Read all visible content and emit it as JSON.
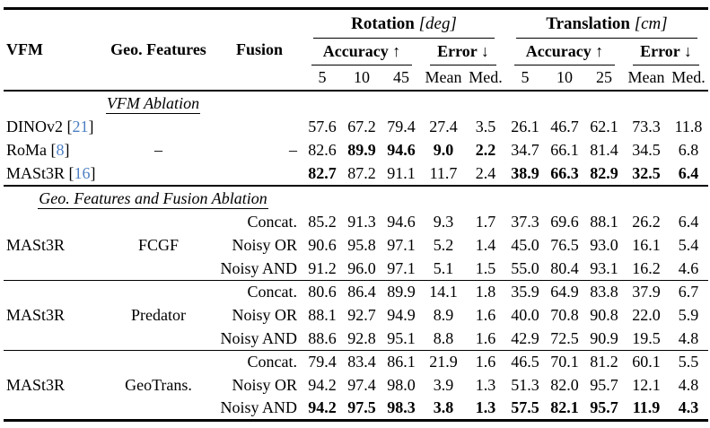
{
  "colors": {
    "citation": "#4d7fc3",
    "text": "#000000",
    "background": "#ffffff",
    "rule": "#000000"
  },
  "table": {
    "header": {
      "vfm": "VFM",
      "geo_features": "Geo. Features",
      "fusion": "Fusion",
      "rotation": {
        "label": "Rotation",
        "unit": "[deg]"
      },
      "translation": {
        "label": "Translation",
        "unit": "[cm]"
      },
      "accuracy": "Accuracy ↑",
      "error": "Error ↓",
      "rotation_thresholds": [
        "5",
        "10",
        "45"
      ],
      "translation_thresholds": [
        "5",
        "10",
        "25"
      ],
      "error_stats": [
        "Mean",
        "Med."
      ]
    },
    "sections": [
      {
        "label": "VFM Ablation",
        "rows": [
          {
            "name": "DINOv2",
            "cite": "21",
            "geo": "",
            "fusion": "",
            "values": [
              "57.6",
              "67.2",
              "79.4",
              "27.4",
              "3.5",
              "26.1",
              "46.7",
              "62.1",
              "73.3",
              "11.8"
            ],
            "bold": [
              0,
              0,
              0,
              0,
              0,
              0,
              0,
              0,
              0,
              0
            ]
          },
          {
            "name": "RoMa",
            "cite": "8",
            "geo": "–",
            "fusion": "–",
            "values": [
              "82.6",
              "89.9",
              "94.6",
              "9.0",
              "2.2",
              "34.7",
              "66.1",
              "81.4",
              "34.5",
              "6.8"
            ],
            "bold": [
              0,
              1,
              1,
              1,
              1,
              0,
              0,
              0,
              0,
              0
            ]
          },
          {
            "name": "MASt3R",
            "cite": "16",
            "geo": "",
            "fusion": "",
            "values": [
              "82.7",
              "87.2",
              "91.1",
              "11.7",
              "2.4",
              "38.9",
              "66.3",
              "82.9",
              "32.5",
              "6.4"
            ],
            "bold": [
              1,
              0,
              0,
              0,
              0,
              1,
              1,
              1,
              1,
              1
            ]
          }
        ]
      },
      {
        "label": "Geo. Features and Fusion Ablation",
        "groups": [
          {
            "vfm": "MASt3R",
            "geo": "FCGF",
            "rows": [
              {
                "fusion": "Concat.",
                "values": [
                  "85.2",
                  "91.3",
                  "94.6",
                  "9.3",
                  "1.7",
                  "37.3",
                  "69.6",
                  "88.1",
                  "26.2",
                  "6.4"
                ],
                "bold": [
                  0,
                  0,
                  0,
                  0,
                  0,
                  0,
                  0,
                  0,
                  0,
                  0
                ]
              },
              {
                "fusion": "Noisy OR",
                "values": [
                  "90.6",
                  "95.8",
                  "97.1",
                  "5.2",
                  "1.4",
                  "45.0",
                  "76.5",
                  "93.0",
                  "16.1",
                  "5.4"
                ],
                "bold": [
                  0,
                  0,
                  0,
                  0,
                  0,
                  0,
                  0,
                  0,
                  0,
                  0
                ]
              },
              {
                "fusion": "Noisy AND",
                "values": [
                  "91.2",
                  "96.0",
                  "97.1",
                  "5.1",
                  "1.5",
                  "55.0",
                  "80.4",
                  "93.1",
                  "16.2",
                  "4.6"
                ],
                "bold": [
                  0,
                  0,
                  0,
                  0,
                  0,
                  0,
                  0,
                  0,
                  0,
                  0
                ]
              }
            ]
          },
          {
            "vfm": "MASt3R",
            "geo": "Predator",
            "rows": [
              {
                "fusion": "Concat.",
                "values": [
                  "80.6",
                  "86.4",
                  "89.9",
                  "14.1",
                  "1.8",
                  "35.9",
                  "64.9",
                  "83.8",
                  "37.9",
                  "6.7"
                ],
                "bold": [
                  0,
                  0,
                  0,
                  0,
                  0,
                  0,
                  0,
                  0,
                  0,
                  0
                ]
              },
              {
                "fusion": "Noisy OR",
                "values": [
                  "88.1",
                  "92.7",
                  "94.9",
                  "8.9",
                  "1.6",
                  "40.0",
                  "70.8",
                  "90.8",
                  "22.0",
                  "5.9"
                ],
                "bold": [
                  0,
                  0,
                  0,
                  0,
                  0,
                  0,
                  0,
                  0,
                  0,
                  0
                ]
              },
              {
                "fusion": "Noisy AND",
                "values": [
                  "88.6",
                  "92.8",
                  "95.1",
                  "8.8",
                  "1.6",
                  "42.9",
                  "72.5",
                  "90.9",
                  "19.5",
                  "4.8"
                ],
                "bold": [
                  0,
                  0,
                  0,
                  0,
                  0,
                  0,
                  0,
                  0,
                  0,
                  0
                ]
              }
            ]
          },
          {
            "vfm": "MASt3R",
            "geo": "GeoTrans.",
            "rows": [
              {
                "fusion": "Concat.",
                "values": [
                  "79.4",
                  "83.4",
                  "86.1",
                  "21.9",
                  "1.6",
                  "46.5",
                  "70.1",
                  "81.2",
                  "60.1",
                  "5.5"
                ],
                "bold": [
                  0,
                  0,
                  0,
                  0,
                  0,
                  0,
                  0,
                  0,
                  0,
                  0
                ]
              },
              {
                "fusion": "Noisy OR",
                "values": [
                  "94.2",
                  "97.4",
                  "98.0",
                  "3.9",
                  "1.3",
                  "51.3",
                  "82.0",
                  "95.7",
                  "12.1",
                  "4.8"
                ],
                "bold": [
                  0,
                  0,
                  0,
                  0,
                  0,
                  0,
                  0,
                  0,
                  0,
                  0
                ]
              },
              {
                "fusion": "Noisy AND",
                "values": [
                  "94.2",
                  "97.5",
                  "98.3",
                  "3.8",
                  "1.3",
                  "57.5",
                  "82.1",
                  "95.7",
                  "11.9",
                  "4.3"
                ],
                "bold": [
                  1,
                  1,
                  1,
                  1,
                  1,
                  1,
                  1,
                  1,
                  1,
                  1
                ]
              }
            ]
          }
        ]
      }
    ]
  }
}
